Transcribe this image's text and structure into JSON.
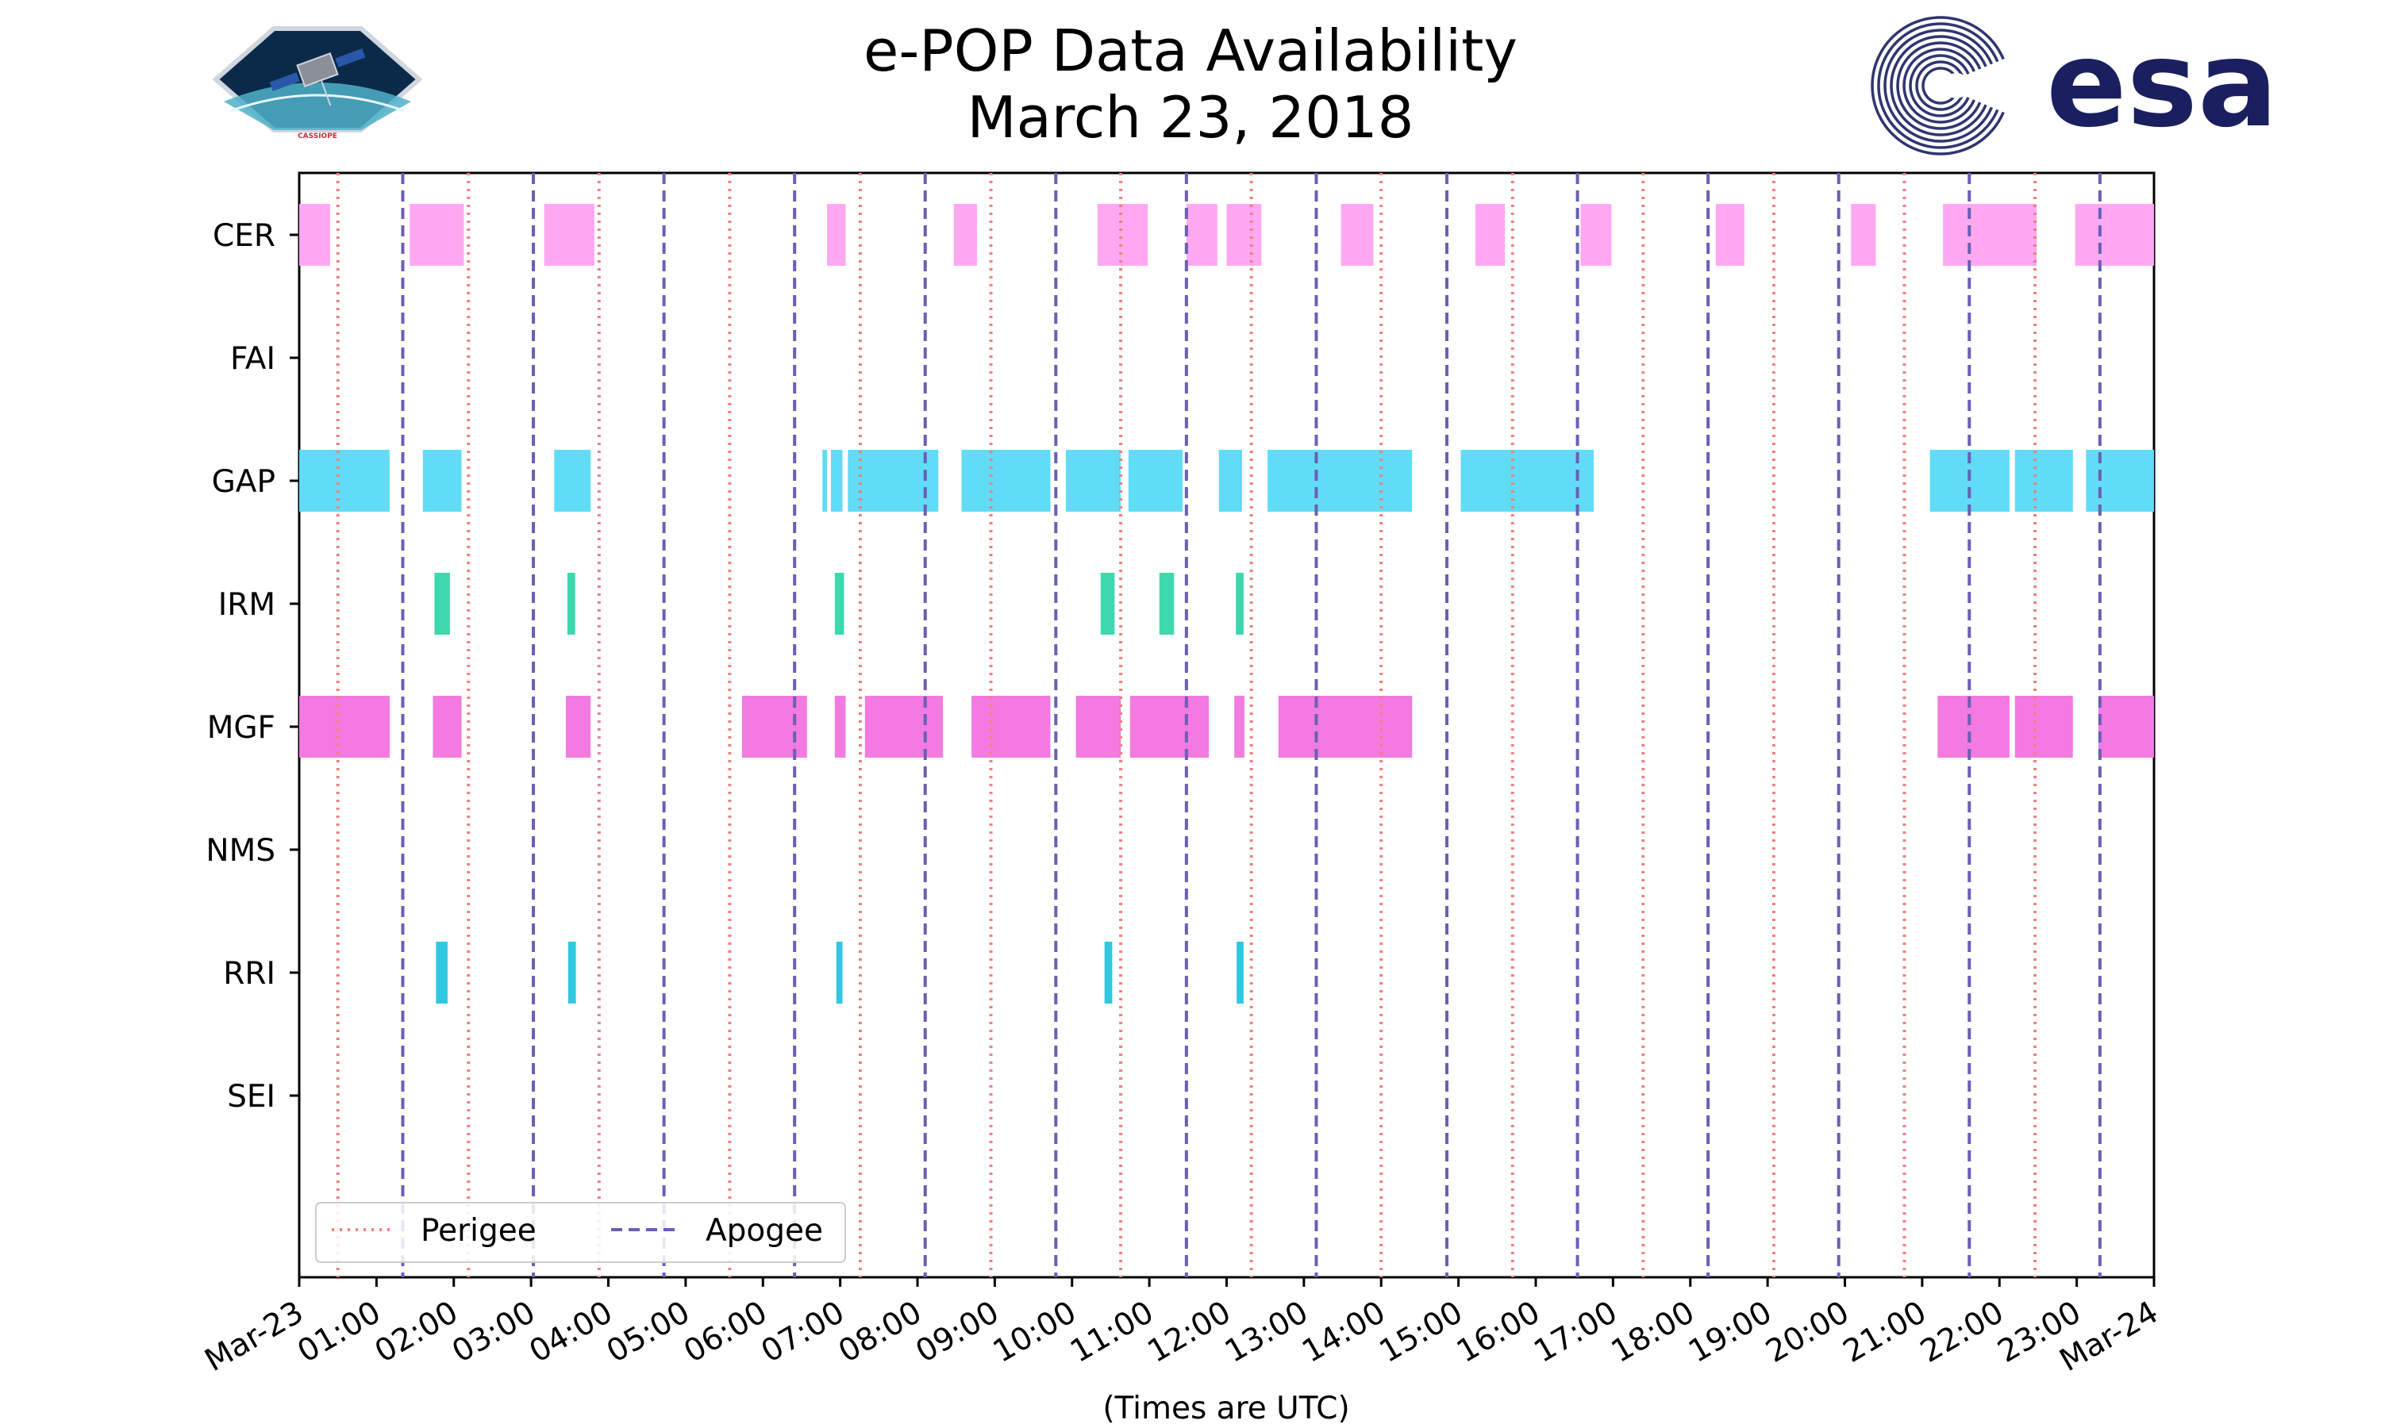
{
  "header": {
    "title_line1": "e-POP Data Availability",
    "title_line2": "March 23, 2018"
  },
  "logos": {
    "mission_badge": "CASSIOPE",
    "agency": "esa"
  },
  "colors": {
    "perigee": "#f07f7f",
    "apogee": "#6a5fb4",
    "CER": "#ffa8f2",
    "GAP": "#60dcf7",
    "IRM": "#3dd8ae",
    "MGF": "#f27ae0",
    "RRI": "#30c8e0",
    "esa_brand": "#1a1f5f"
  },
  "chart_data": {
    "type": "timeline",
    "title": "e-POP Data Availability March 23, 2018",
    "xlabel": "(Times are UTC)",
    "x_unit": "hours UTC",
    "xlim": [
      0,
      24
    ],
    "x_ticks": [
      {
        "value": 0,
        "label": "Mar-23"
      },
      {
        "value": 1,
        "label": "01:00"
      },
      {
        "value": 2,
        "label": "02:00"
      },
      {
        "value": 3,
        "label": "03:00"
      },
      {
        "value": 4,
        "label": "04:00"
      },
      {
        "value": 5,
        "label": "05:00"
      },
      {
        "value": 6,
        "label": "06:00"
      },
      {
        "value": 7,
        "label": "07:00"
      },
      {
        "value": 8,
        "label": "08:00"
      },
      {
        "value": 9,
        "label": "09:00"
      },
      {
        "value": 10,
        "label": "10:00"
      },
      {
        "value": 11,
        "label": "11:00"
      },
      {
        "value": 12,
        "label": "12:00"
      },
      {
        "value": 13,
        "label": "13:00"
      },
      {
        "value": 14,
        "label": "14:00"
      },
      {
        "value": 15,
        "label": "15:00"
      },
      {
        "value": 16,
        "label": "16:00"
      },
      {
        "value": 17,
        "label": "17:00"
      },
      {
        "value": 18,
        "label": "18:00"
      },
      {
        "value": 19,
        "label": "19:00"
      },
      {
        "value": 20,
        "label": "20:00"
      },
      {
        "value": 21,
        "label": "21:00"
      },
      {
        "value": 22,
        "label": "22:00"
      },
      {
        "value": 23,
        "label": "23:00"
      },
      {
        "value": 24,
        "label": "Mar-24"
      }
    ],
    "instruments": [
      "CER",
      "FAI",
      "GAP",
      "IRM",
      "MGF",
      "NMS",
      "RRI",
      "SEI"
    ],
    "intervals": {
      "CER": [
        [
          0.0,
          0.4
        ],
        [
          1.43,
          2.13
        ],
        [
          3.17,
          3.82
        ],
        [
          6.83,
          7.07
        ],
        [
          8.47,
          8.77
        ],
        [
          10.33,
          10.98
        ],
        [
          11.48,
          11.88
        ],
        [
          12.0,
          12.45
        ],
        [
          13.48,
          13.9
        ],
        [
          15.22,
          15.6
        ],
        [
          16.58,
          16.98
        ],
        [
          18.33,
          18.7
        ],
        [
          20.08,
          20.4
        ],
        [
          21.27,
          22.48
        ],
        [
          22.98,
          24.0
        ]
      ],
      "FAI": [],
      "GAP": [
        [
          0.0,
          1.17
        ],
        [
          1.6,
          2.1
        ],
        [
          3.3,
          3.77
        ],
        [
          6.77,
          6.83
        ],
        [
          6.88,
          7.03
        ],
        [
          7.1,
          8.27
        ],
        [
          8.57,
          9.72
        ],
        [
          9.92,
          10.63
        ],
        [
          10.73,
          11.43
        ],
        [
          11.9,
          12.2
        ],
        [
          12.53,
          14.4
        ],
        [
          15.03,
          16.75
        ],
        [
          21.1,
          22.13
        ],
        [
          22.2,
          22.95
        ],
        [
          23.12,
          24.0
        ]
      ],
      "IRM": [
        [
          1.75,
          1.95
        ],
        [
          3.47,
          3.57
        ],
        [
          6.93,
          7.05
        ],
        [
          10.37,
          10.55
        ],
        [
          11.13,
          11.32
        ],
        [
          12.12,
          12.22
        ]
      ],
      "MGF": [
        [
          0.0,
          1.17
        ],
        [
          1.73,
          2.1
        ],
        [
          3.45,
          3.77
        ],
        [
          5.73,
          6.57
        ],
        [
          6.93,
          7.07
        ],
        [
          7.32,
          8.33
        ],
        [
          8.7,
          9.72
        ],
        [
          10.05,
          10.63
        ],
        [
          10.75,
          11.77
        ],
        [
          12.1,
          12.23
        ],
        [
          12.67,
          14.4
        ],
        [
          21.2,
          22.13
        ],
        [
          22.2,
          22.95
        ],
        [
          23.28,
          24.0
        ]
      ],
      "NMS": [],
      "RRI": [
        [
          1.77,
          1.92
        ],
        [
          3.48,
          3.58
        ],
        [
          6.95,
          7.03
        ],
        [
          10.42,
          10.52
        ],
        [
          12.13,
          12.22
        ]
      ],
      "SEI": []
    },
    "perigee_times": [
      0.5,
      2.19,
      3.88,
      5.57,
      7.26,
      8.95,
      10.63,
      12.32,
      14.0,
      15.7,
      17.39,
      19.08,
      20.77,
      22.46
    ],
    "apogee_times": [
      1.34,
      3.03,
      4.72,
      6.41,
      8.1,
      9.79,
      11.48,
      13.16,
      14.85,
      16.54,
      18.23,
      19.92,
      21.61,
      23.3
    ],
    "legend": {
      "position": "lower-left",
      "entries": [
        {
          "label": "Perigee",
          "style": "dotted",
          "color": "#f07f7f"
        },
        {
          "label": "Apogee",
          "style": "dashed",
          "color": "#6a5fb4"
        }
      ]
    },
    "grid": false
  }
}
